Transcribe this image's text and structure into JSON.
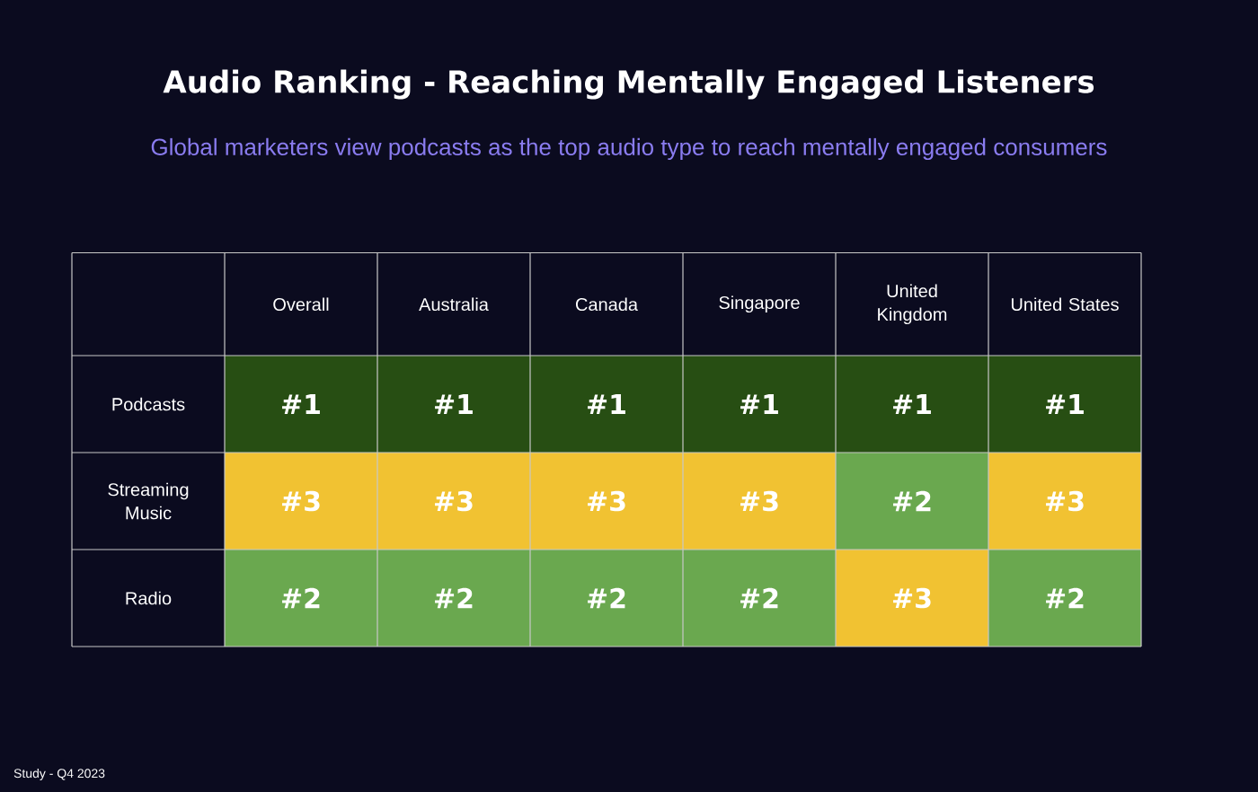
{
  "chart_data": {
    "type": "heatmap",
    "title": "Audio Ranking - Reaching Mentally Engaged Listeners",
    "subtitle": "Global marketers view podcasts as the top audio type to reach mentally engaged consumers",
    "categories": [
      "Overall",
      "Australia",
      "Canada",
      "Singapore",
      "United Kingdom",
      "United States"
    ],
    "y_categories": [
      "Podcasts",
      "Streaming Music",
      "Radio"
    ],
    "cells": [
      [
        1,
        1,
        1,
        1,
        1,
        1
      ],
      [
        3,
        3,
        3,
        3,
        2,
        3
      ],
      [
        2,
        2,
        2,
        2,
        3,
        2
      ]
    ],
    "cell_labels": [
      [
        "#1",
        "#1",
        "#1",
        "#1",
        "#1",
        "#1"
      ],
      [
        "#3",
        "#3",
        "#3",
        "#3",
        "#2",
        "#3"
      ],
      [
        "#2",
        "#2",
        "#2",
        "#2",
        "#3",
        "#2"
      ]
    ],
    "colors": [
      "#274e13",
      "#6aa84f",
      "#f1c232"
    ],
    "annotations": [
      "Study - Q4 2023"
    ]
  }
}
